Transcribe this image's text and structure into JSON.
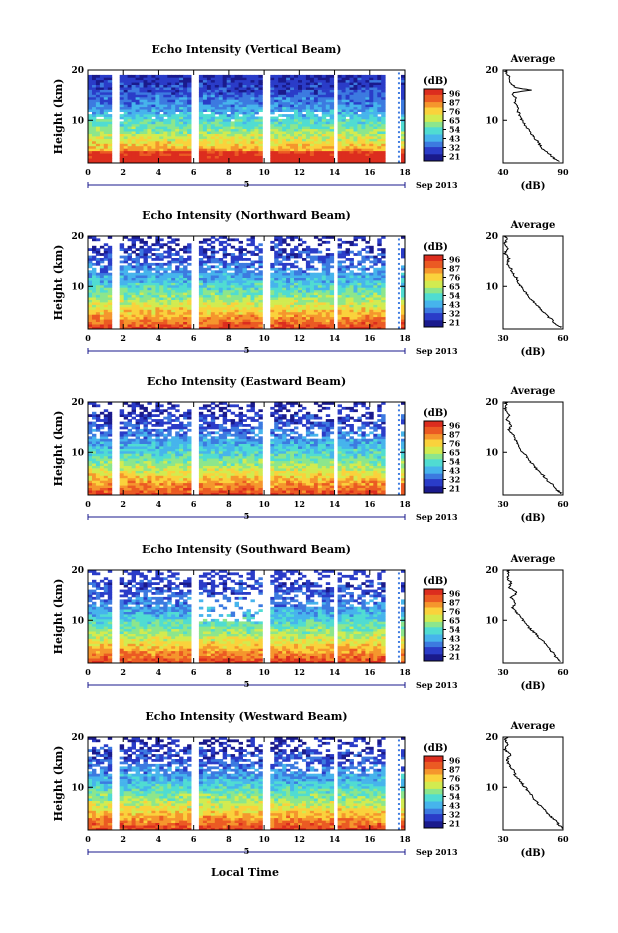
{
  "chart_data": [
    {
      "type": "heatmap",
      "title": "Echo Intensity (Vertical Beam)",
      "ylabel": "Height (km)",
      "x_ticks": [
        "0",
        "2",
        "4",
        "6",
        "8",
        "10",
        "12",
        "14",
        "16",
        "18"
      ],
      "y_ticks": [
        "20",
        "10"
      ],
      "xlim": [
        0,
        18
      ],
      "ylim": [
        1.5,
        20
      ],
      "date_marker": "5",
      "date_label": "Sep 2013",
      "colorbar_unit": "(dB)",
      "colorbar_ticks": [
        "96",
        "87",
        "76",
        "65",
        "54",
        "43",
        "32",
        "21"
      ],
      "avg_title": "Average",
      "avg_xticks": [
        "40",
        "90"
      ],
      "avg_xlim": [
        40,
        90
      ],
      "avg_xlabel": "(dB)",
      "avg_yticks": [
        "20",
        "10"
      ],
      "profile": [
        [
          1.8,
          88
        ],
        [
          2.5,
          82
        ],
        [
          3.5,
          78
        ],
        [
          4.5,
          72
        ],
        [
          5.5,
          70
        ],
        [
          6.5,
          66
        ],
        [
          7.5,
          63
        ],
        [
          8.5,
          60
        ],
        [
          9.5,
          57
        ],
        [
          10.5,
          55
        ],
        [
          11.5,
          53
        ],
        [
          12.5,
          52
        ],
        [
          13.5,
          50
        ],
        [
          14.5,
          50
        ],
        [
          15.5,
          48
        ],
        [
          16.0,
          64
        ],
        [
          16.5,
          50
        ],
        [
          17.5,
          46
        ],
        [
          18.5,
          45
        ],
        [
          19.5,
          43
        ],
        [
          20,
          42
        ]
      ]
    },
    {
      "type": "heatmap",
      "title": "Echo Intensity (Northward Beam)",
      "ylabel": "Height (km)",
      "x_ticks": [
        "0",
        "2",
        "4",
        "6",
        "8",
        "10",
        "12",
        "14",
        "16",
        "18"
      ],
      "y_ticks": [
        "20",
        "10"
      ],
      "xlim": [
        0,
        18
      ],
      "ylim": [
        1.5,
        20
      ],
      "date_marker": "5",
      "date_label": "Sep 2013",
      "colorbar_unit": "(dB)",
      "colorbar_ticks": [
        "96",
        "87",
        "76",
        "65",
        "54",
        "43",
        "32",
        "21"
      ],
      "avg_title": "Average",
      "avg_xticks": [
        "30",
        "60"
      ],
      "avg_xlim": [
        30,
        60
      ],
      "avg_xlabel": "(dB)",
      "avg_yticks": [
        "20",
        "10"
      ],
      "profile": [
        [
          1.8,
          59
        ],
        [
          2.5,
          56
        ],
        [
          3.5,
          54
        ],
        [
          4.5,
          51
        ],
        [
          5.5,
          49
        ],
        [
          6.5,
          46
        ],
        [
          7.5,
          44
        ],
        [
          8.5,
          42
        ],
        [
          9.5,
          40
        ],
        [
          10.5,
          38
        ],
        [
          11.5,
          37
        ],
        [
          12.5,
          35
        ],
        [
          13.5,
          34
        ],
        [
          14.5,
          32
        ],
        [
          15.5,
          33
        ],
        [
          16.5,
          31
        ],
        [
          17.5,
          32
        ],
        [
          18.5,
          31
        ],
        [
          19.5,
          32
        ],
        [
          20,
          31
        ]
      ]
    },
    {
      "type": "heatmap",
      "title": "Echo Intensity (Eastward Beam)",
      "ylabel": "Height (km)",
      "x_ticks": [
        "0",
        "2",
        "4",
        "6",
        "8",
        "10",
        "12",
        "14",
        "16",
        "18"
      ],
      "y_ticks": [
        "20",
        "10"
      ],
      "xlim": [
        0,
        18
      ],
      "ylim": [
        1.5,
        20
      ],
      "date_marker": "5",
      "date_label": "Sep 2013",
      "colorbar_unit": "(dB)",
      "colorbar_ticks": [
        "96",
        "87",
        "76",
        "65",
        "54",
        "43",
        "32",
        "21"
      ],
      "avg_title": "Average",
      "avg_xticks": [
        "30",
        "60"
      ],
      "avg_xlim": [
        30,
        60
      ],
      "avg_xlabel": "(dB)",
      "avg_yticks": [
        "20",
        "10"
      ],
      "profile": [
        [
          1.8,
          59
        ],
        [
          2.5,
          57
        ],
        [
          3.5,
          55
        ],
        [
          4.5,
          52
        ],
        [
          5.5,
          50
        ],
        [
          6.5,
          47
        ],
        [
          7.5,
          45
        ],
        [
          8.5,
          43
        ],
        [
          9.5,
          41
        ],
        [
          10.5,
          39
        ],
        [
          11.5,
          38
        ],
        [
          12.5,
          36
        ],
        [
          13.5,
          35
        ],
        [
          14.5,
          33
        ],
        [
          15.5,
          34
        ],
        [
          16.5,
          32
        ],
        [
          17.5,
          33
        ],
        [
          18.5,
          31
        ],
        [
          19.5,
          32
        ],
        [
          20,
          31
        ]
      ]
    },
    {
      "type": "heatmap",
      "title": "Echo Intensity (Southward Beam)",
      "ylabel": "Height (km)",
      "x_ticks": [
        "0",
        "2",
        "4",
        "6",
        "8",
        "10",
        "12",
        "14",
        "16",
        "18"
      ],
      "y_ticks": [
        "20",
        "10"
      ],
      "xlim": [
        0,
        18
      ],
      "ylim": [
        1.5,
        20
      ],
      "date_marker": "5",
      "date_label": "Sep 2013",
      "colorbar_unit": "(dB)",
      "colorbar_ticks": [
        "96",
        "87",
        "76",
        "65",
        "54",
        "43",
        "32",
        "21"
      ],
      "avg_title": "Average",
      "avg_xticks": [
        "30",
        "60"
      ],
      "avg_xlim": [
        30,
        60
      ],
      "avg_xlabel": "(dB)",
      "avg_yticks": [
        "20",
        "10"
      ],
      "profile": [
        [
          1.8,
          59
        ],
        [
          2.5,
          57
        ],
        [
          3.5,
          55
        ],
        [
          4.5,
          53
        ],
        [
          5.5,
          51
        ],
        [
          6.5,
          48
        ],
        [
          7.5,
          46
        ],
        [
          8.5,
          43
        ],
        [
          9.5,
          41
        ],
        [
          10.5,
          39
        ],
        [
          11.5,
          37
        ],
        [
          12.5,
          35
        ],
        [
          13.5,
          36
        ],
        [
          14.5,
          34
        ],
        [
          15.5,
          37
        ],
        [
          16.5,
          33
        ],
        [
          17.5,
          34
        ],
        [
          18.5,
          32
        ],
        [
          19.5,
          33
        ],
        [
          20,
          32
        ]
      ]
    },
    {
      "type": "heatmap",
      "title": "Echo Intensity (Westward Beam)",
      "ylabel": "Height (km)",
      "x_ticks": [
        "0",
        "2",
        "4",
        "6",
        "8",
        "10",
        "12",
        "14",
        "16",
        "18"
      ],
      "y_ticks": [
        "20",
        "10"
      ],
      "xlim": [
        0,
        18
      ],
      "ylim": [
        1.5,
        20
      ],
      "date_marker": "5",
      "date_label": "Sep 2013",
      "colorbar_unit": "(dB)",
      "colorbar_ticks": [
        "96",
        "87",
        "76",
        "65",
        "54",
        "43",
        "32",
        "21"
      ],
      "avg_title": "Average",
      "avg_xticks": [
        "30",
        "60"
      ],
      "avg_xlim": [
        30,
        60
      ],
      "avg_xlabel": "(dB)",
      "avg_yticks": [
        "20",
        "10"
      ],
      "profile": [
        [
          1.8,
          60
        ],
        [
          2.5,
          58
        ],
        [
          3.5,
          56
        ],
        [
          4.5,
          53
        ],
        [
          5.5,
          51
        ],
        [
          6.5,
          48
        ],
        [
          7.5,
          46
        ],
        [
          8.5,
          44
        ],
        [
          9.5,
          42
        ],
        [
          10.5,
          40
        ],
        [
          11.5,
          38
        ],
        [
          12.5,
          36
        ],
        [
          13.5,
          35
        ],
        [
          14.5,
          33
        ],
        [
          15.5,
          32
        ],
        [
          16.5,
          34
        ],
        [
          17.5,
          31
        ],
        [
          18.5,
          32
        ],
        [
          19.5,
          31
        ],
        [
          20,
          32
        ]
      ]
    }
  ],
  "footer": {
    "xlabel": "Local Time"
  },
  "colormap": [
    "#1a1a8c",
    "#2a3cc8",
    "#3c7ae0",
    "#46b4ec",
    "#50dcd2",
    "#8ce68c",
    "#d2eb50",
    "#fad23c",
    "#f5962d",
    "#eb5a23",
    "#dc2d1e"
  ],
  "data_gaps_hours": [
    [
      0.9,
      1.0
    ],
    [
      1.45,
      1.75
    ],
    [
      2.85,
      3.0
    ],
    [
      5.85,
      6.25
    ],
    [
      9.85,
      10.3
    ],
    [
      13.85,
      14.1
    ],
    [
      16.8,
      17.0
    ]
  ]
}
